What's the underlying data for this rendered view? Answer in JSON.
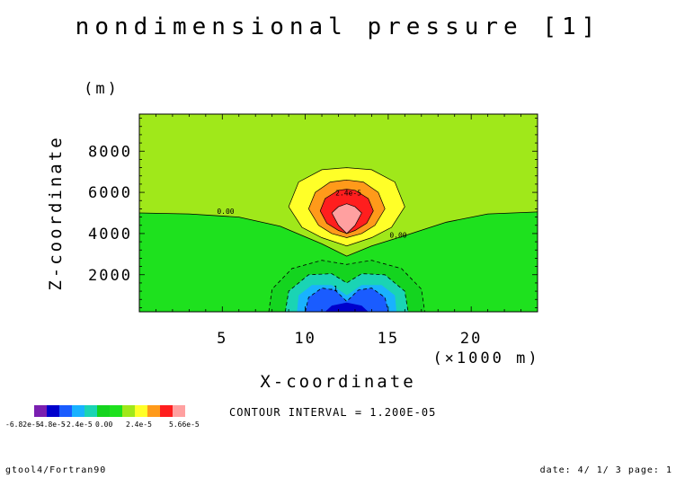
{
  "figure": {
    "title": "nondimensional  pressure  [1]",
    "contour_interval_text": "CONTOUR INTERVAL = 1.200E-05",
    "footer_left": "gtool4/Fortran90",
    "footer_right": "date: 4/ 1/ 3 page: 1"
  },
  "chart_data": {
    "type": "heatmap",
    "title": "nondimensional  pressure  [1]",
    "xlabel": "X-coordinate",
    "xunit": "(×1000 m)",
    "ylabel": "Z-coordinate",
    "yunit": "(m)",
    "xlim": [
      0,
      24
    ],
    "ylim": [
      200,
      9800
    ],
    "x_ticks": [
      5,
      10,
      15,
      20
    ],
    "y_ticks": [
      2000,
      4000,
      6000,
      8000
    ],
    "contour_interval": 1.2e-05,
    "colorbar": {
      "colors": [
        "#7a1fb0",
        "#0000cc",
        "#1a5cff",
        "#19b2ff",
        "#1ad4b4",
        "#14d41f",
        "#1ee11e",
        "#a0e81a",
        "#ffff28",
        "#ff9a1a",
        "#ff1e1e",
        "#ffa0a0"
      ],
      "labels": [
        "-6.82e-5",
        "-4.8e-5",
        "-2.4e-5",
        "0.00",
        "2.4e-5",
        "5.66e-5"
      ]
    },
    "contour_labels": [
      {
        "text": "0.00",
        "x": 5.2,
        "z": 4950
      },
      {
        "text": "0.00",
        "x": 15.6,
        "z": 3800
      },
      {
        "text": "2.4e-5",
        "x": 12.6,
        "z": 5850
      },
      {
        "text": "-1",
        "x": 11.7,
        "z": 1200
      }
    ],
    "field": {
      "background_positive": "#a0e81a",
      "background_negative": "#1ee11e",
      "positive_cell": {
        "center_x": 12.5,
        "center_z": 4600,
        "levels": [
          0.0,
          1.2e-05,
          2.4e-05,
          3.6e-05,
          4.8e-05
        ],
        "colors": [
          "#ffff28",
          "#ff9a1a",
          "#ff1e1e",
          "#ffa0a0"
        ]
      },
      "negative_cell": {
        "center_x": 12.5,
        "center_z": 500,
        "colors": [
          "#14d41f",
          "#1ad4b4",
          "#19b2ff",
          "#1a5cff",
          "#0000cc"
        ]
      }
    }
  }
}
